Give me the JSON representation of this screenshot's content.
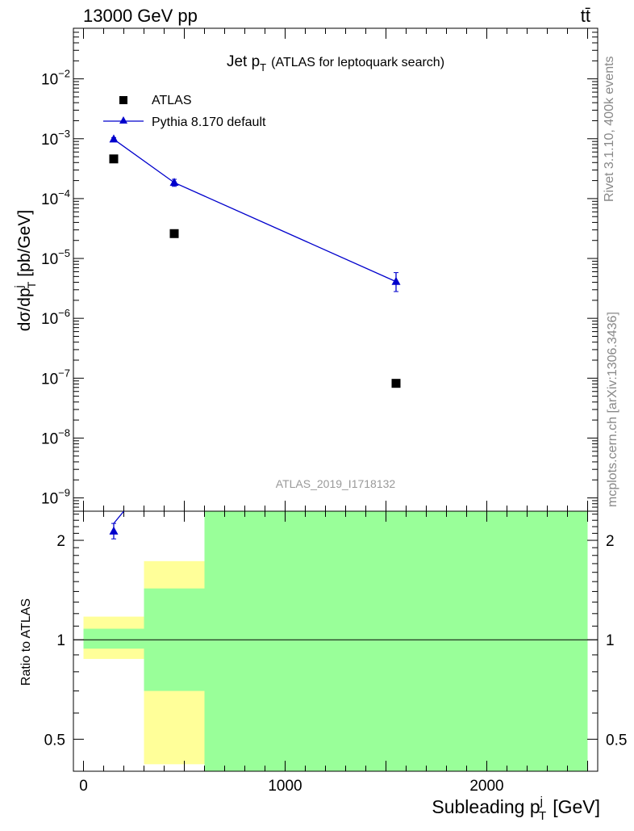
{
  "header": {
    "collision": "13000 GeV pp",
    "process": "tt̄"
  },
  "side_labels": {
    "rivet": "Rivet 3.1.10,  400k events",
    "site": "mcplots.cern.ch [arXiv:1306.3436]"
  },
  "chart_data": [
    {
      "type": "scatter",
      "title_main": "Jet p",
      "title_sub": "T",
      "title_rest": "(ATLAS for leptoquark search)",
      "ylabel_pre": "dσ/dp",
      "ylabel_sup": "j",
      "ylabel_sub": "T",
      "ylabel_post": "[pb/GeV]",
      "yscale": "log",
      "ylim": [
        6e-10,
        0.07
      ],
      "xlim": [
        -50,
        2550
      ],
      "yticks": [
        {
          "value": 1e-09,
          "base": "10",
          "exp": "−9"
        },
        {
          "value": 1e-08,
          "base": "10",
          "exp": "−8"
        },
        {
          "value": 1e-07,
          "base": "10",
          "exp": "−7"
        },
        {
          "value": 1e-06,
          "base": "10",
          "exp": "−6"
        },
        {
          "value": 1e-05,
          "base": "10",
          "exp": "−5"
        },
        {
          "value": 0.0001,
          "base": "10",
          "exp": "−4"
        },
        {
          "value": 0.001,
          "base": "10",
          "exp": "−3"
        },
        {
          "value": 0.01,
          "base": "10",
          "exp": "−2"
        }
      ],
      "watermark": "ATLAS_2019_I1718132",
      "legend_position": "top-left",
      "series": [
        {
          "name": "ATLAS",
          "marker": "square",
          "color": "#000000",
          "points": [
            {
              "x": 150,
              "y": 0.00046
            },
            {
              "x": 450,
              "y": 2.6e-05
            },
            {
              "x": 1550,
              "y": 8.2e-08
            }
          ]
        },
        {
          "name": "Pythia 8.170 default",
          "marker": "triangle",
          "color": "#0000cc",
          "points": [
            {
              "x": 150,
              "y": 0.00098,
              "ylo": 0.00092,
              "yhi": 0.00104
            },
            {
              "x": 450,
              "y": 0.000185,
              "ylo": 0.00016,
              "yhi": 0.00021
            },
            {
              "x": 1550,
              "y": 4.1e-06,
              "ylo": 2.8e-06,
              "yhi": 5.8e-06
            }
          ]
        }
      ]
    },
    {
      "type": "ratio",
      "ylabel": "Ratio to ATLAS",
      "xlabel_pre": "Subleading p",
      "xlabel_sup": "j",
      "xlabel_sub": "T",
      "xlabel_post": "[GeV]",
      "yscale": "log",
      "ylim": [
        0.4,
        2.45
      ],
      "xlim": [
        -50,
        2550
      ],
      "yticks": [
        {
          "value": 0.5,
          "label": "0.5"
        },
        {
          "value": 1,
          "label": "1"
        },
        {
          "value": 2,
          "label": "2"
        }
      ],
      "xticks": [
        {
          "value": 0,
          "label": "0"
        },
        {
          "value": 1000,
          "label": "1000"
        },
        {
          "value": 2000,
          "label": "2000"
        }
      ],
      "bands": [
        {
          "x0": 0,
          "x1": 300,
          "yellow": [
            0.875,
            1.175
          ],
          "green": [
            0.94,
            1.08
          ]
        },
        {
          "x0": 300,
          "x1": 600,
          "yellow": [
            0.42,
            1.73
          ],
          "green": [
            0.7,
            1.43
          ]
        },
        {
          "x0": 600,
          "x1": 2500,
          "yellow": [
            0.4,
            2.45
          ],
          "green": [
            0.4,
            2.45
          ]
        }
      ],
      "ratio_points": [
        {
          "x": 150,
          "y": 2.13,
          "ylo": 2.02,
          "yhi": 2.25
        }
      ],
      "ratio_line_to": {
        "x": 200,
        "y": 2.5
      }
    }
  ]
}
